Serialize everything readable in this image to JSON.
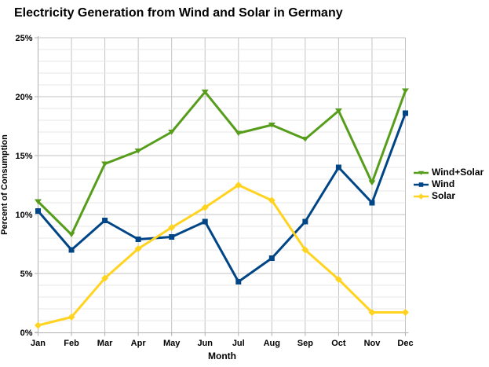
{
  "title": "Electricity Generation from Wind and Solar in Germany",
  "chart_data": {
    "type": "line",
    "title": "Electricity Generation from Wind and Solar in Germany",
    "xlabel": "Month",
    "ylabel": "Percent of Consumption",
    "categories": [
      "Jan",
      "Feb",
      "Mar",
      "Apr",
      "May",
      "Jun",
      "Jul",
      "Aug",
      "Sep",
      "Oct",
      "Nov",
      "Dec"
    ],
    "y_tick_labels": [
      "0%",
      "5%",
      "10%",
      "15%",
      "20%",
      "25%"
    ],
    "ylim": [
      0,
      25
    ],
    "y_major_step": 5,
    "y_minor_step": 1,
    "grid": true,
    "legend_position": "right",
    "series": [
      {
        "name": "Wind+Solar",
        "color": "#579D1C",
        "marker": "triangle",
        "values": [
          11.1,
          8.3,
          14.3,
          15.4,
          17.0,
          20.4,
          16.9,
          17.6,
          16.4,
          18.8,
          12.7,
          20.5
        ]
      },
      {
        "name": "Wind",
        "color": "#004586",
        "marker": "square",
        "values": [
          10.3,
          7.0,
          9.5,
          7.9,
          8.1,
          9.4,
          4.3,
          6.3,
          9.4,
          14.0,
          11.0,
          18.6
        ]
      },
      {
        "name": "Solar",
        "color": "#FFD320",
        "marker": "diamond",
        "values": [
          0.6,
          1.3,
          4.6,
          7.1,
          8.9,
          10.6,
          12.5,
          11.2,
          7.0,
          4.5,
          1.7,
          1.7
        ]
      }
    ],
    "grid_minor_color": "#e7e7e7",
    "grid_major_color": "#c3c3c3",
    "axis_color": "#b0b0b0"
  }
}
